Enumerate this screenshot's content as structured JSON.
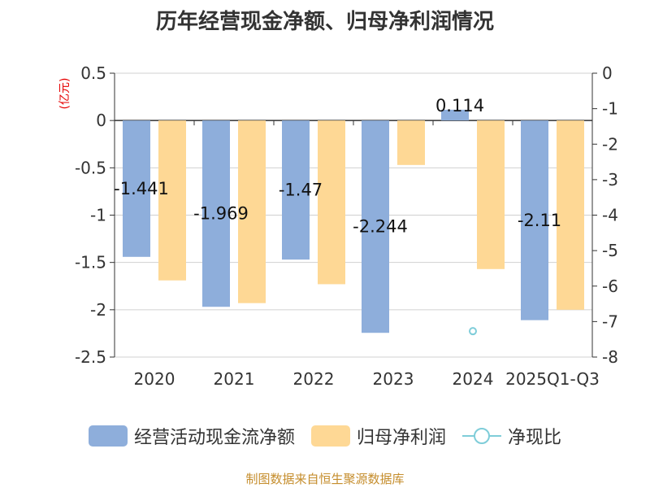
{
  "title": "历年经营现金净额、归母净利润情况",
  "source": "制图数据来自恒生聚源数据库",
  "colors": {
    "cash_flow": "#8eaedb",
    "net_profit": "#fed895",
    "ratio": "#7fcdd9",
    "unit": "#e60000"
  },
  "chart_data": {
    "type": "bar",
    "categories": [
      "2020",
      "2021",
      "2022",
      "2023",
      "2024",
      "2025Q1-Q3"
    ],
    "left_axis": {
      "unit": "(亿元)",
      "ylim": [
        -2.5,
        0.5
      ],
      "ticks": [
        "0.5",
        "0",
        "-0.5",
        "-1",
        "-1.5",
        "-2",
        "-2.5"
      ]
    },
    "right_axis": {
      "ylim": [
        -8,
        0
      ],
      "ticks": [
        "0",
        "-1",
        "-2",
        "-3",
        "-4",
        "-5",
        "-6",
        "-7",
        "-8"
      ]
    },
    "series": [
      {
        "name": "经营活动现金流净额",
        "type": "bar",
        "axis": "left",
        "values": [
          -1.441,
          -1.969,
          -1.47,
          -2.244,
          0.114,
          -2.11
        ],
        "labels": [
          "-1.441",
          "-1.969",
          "-1.47",
          "-2.244",
          "0.114",
          "-2.11"
        ]
      },
      {
        "name": "归母净利润",
        "type": "bar",
        "axis": "left",
        "values": [
          -1.69,
          -1.93,
          -1.73,
          -0.47,
          -1.57,
          -2.0
        ]
      },
      {
        "name": "净现比",
        "type": "line",
        "axis": "right",
        "values": [
          null,
          null,
          null,
          null,
          -7.27,
          null
        ]
      }
    ],
    "grid": true,
    "legend_position": "bottom"
  }
}
